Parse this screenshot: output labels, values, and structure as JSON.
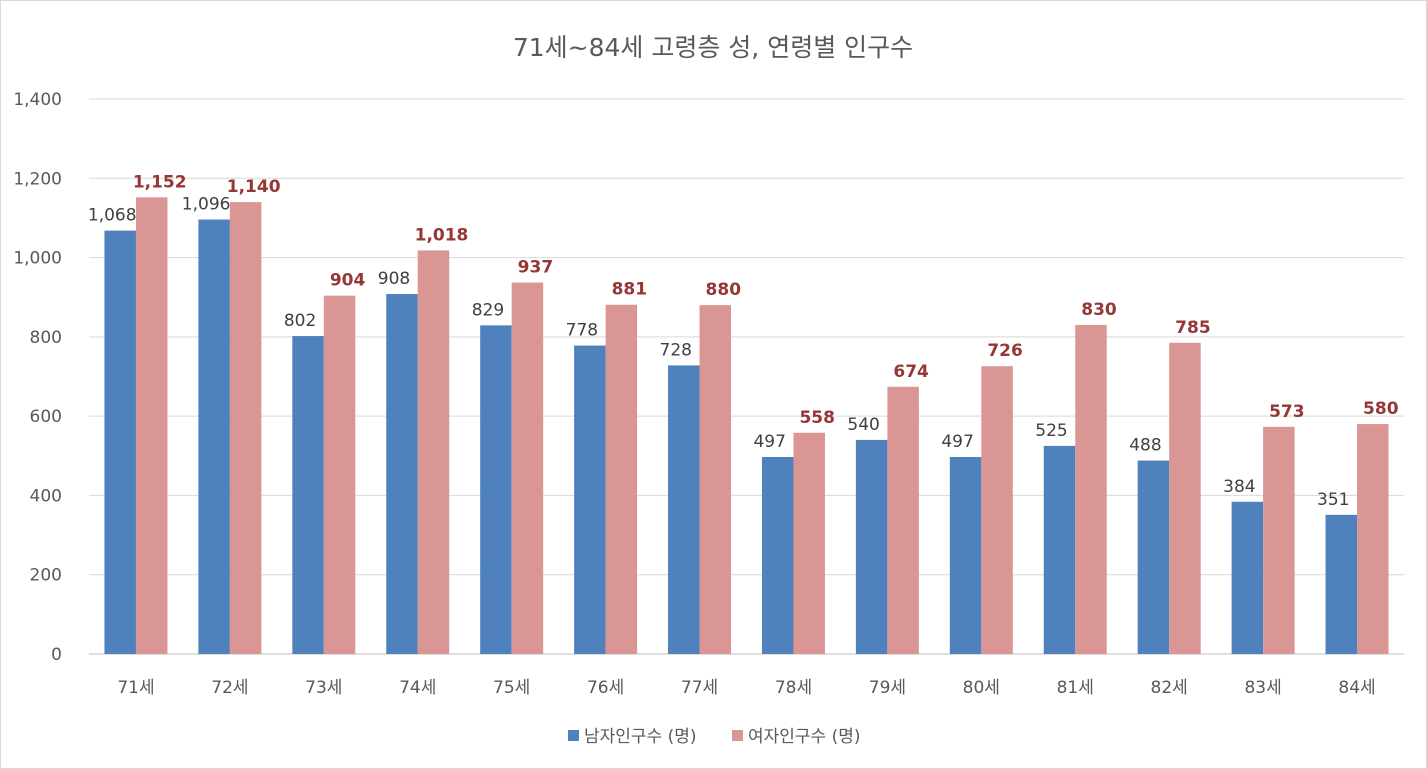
{
  "chart_data": {
    "type": "bar",
    "title": "71세~84세 고령층 성, 연령별 인구수",
    "categories": [
      "71세",
      "72세",
      "73세",
      "74세",
      "75세",
      "76세",
      "77세",
      "78세",
      "79세",
      "80세",
      "81세",
      "82세",
      "83세",
      "84세"
    ],
    "series": [
      {
        "name": "남자인구수 (명)",
        "color": "#4f81bd",
        "label_color": "#404040",
        "values": [
          1068,
          1096,
          802,
          908,
          829,
          778,
          728,
          497,
          540,
          497,
          525,
          488,
          384,
          351
        ],
        "labels": [
          "1,068",
          "1,096",
          "802",
          "908",
          "829",
          "778",
          "728",
          "497",
          "540",
          "497",
          "525",
          "488",
          "384",
          "351"
        ]
      },
      {
        "name": "여자인구수 (명)",
        "color": "#d99694",
        "label_color": "#953735",
        "values": [
          1152,
          1140,
          904,
          1018,
          937,
          881,
          880,
          558,
          674,
          726,
          830,
          785,
          573,
          580
        ],
        "labels": [
          "1,152",
          "1,140",
          "904",
          "1,018",
          "937",
          "881",
          "880",
          "558",
          "674",
          "726",
          "830",
          "785",
          "573",
          "580"
        ]
      }
    ],
    "ylim": [
      0,
      1400
    ],
    "yticks": [
      0,
      200,
      400,
      600,
      800,
      1000,
      1200,
      1400
    ],
    "ytick_labels": [
      "0",
      "200",
      "400",
      "600",
      "800",
      "1,000",
      "1,200",
      "1,400"
    ],
    "grid": true,
    "legend": "bottom"
  }
}
